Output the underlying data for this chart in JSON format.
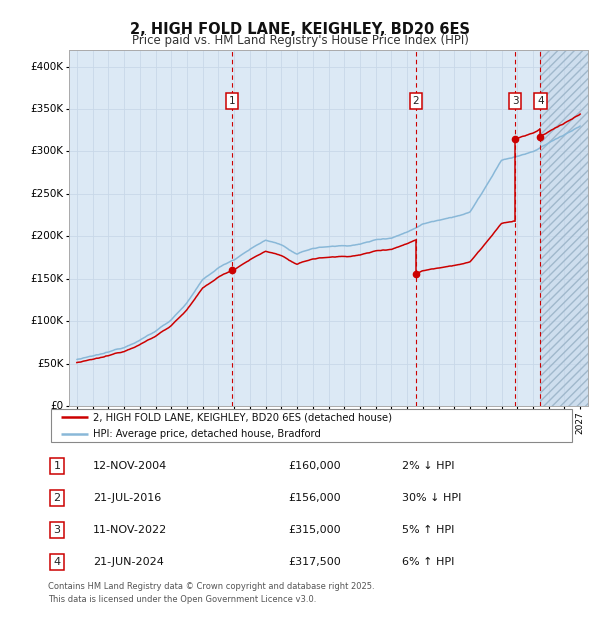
{
  "title": "2, HIGH FOLD LANE, KEIGHLEY, BD20 6ES",
  "subtitle": "Price paid vs. HM Land Registry's House Price Index (HPI)",
  "ylim": [
    0,
    420000
  ],
  "yticks": [
    0,
    50000,
    100000,
    150000,
    200000,
    250000,
    300000,
    350000,
    400000
  ],
  "ytick_labels": [
    "£0",
    "£50K",
    "£100K",
    "£150K",
    "£200K",
    "£250K",
    "£300K",
    "£350K",
    "£400K"
  ],
  "xlim_start": 1994.5,
  "xlim_end": 2027.5,
  "background_color": "#ffffff",
  "plot_bg_color": "#dce9f5",
  "grid_color": "#c8d8e8",
  "sale_color": "#cc0000",
  "hpi_color": "#89b8d8",
  "vline_color": "#cc0000",
  "transactions": [
    {
      "num": 1,
      "date_x": 2004.87,
      "price": 160000
    },
    {
      "num": 2,
      "date_x": 2016.55,
      "price": 156000
    },
    {
      "num": 3,
      "date_x": 2022.87,
      "price": 315000
    },
    {
      "num": 4,
      "date_x": 2024.47,
      "price": 317500
    }
  ],
  "legend_line1": "2, HIGH FOLD LANE, KEIGHLEY, BD20 6ES (detached house)",
  "legend_line2": "HPI: Average price, detached house, Bradford",
  "footnote1": "Contains HM Land Registry data © Crown copyright and database right 2025.",
  "footnote2": "This data is licensed under the Open Government Licence v3.0.",
  "table_rows": [
    {
      "num": 1,
      "date": "12-NOV-2004",
      "price": "£160,000",
      "hpi": "2% ↓ HPI"
    },
    {
      "num": 2,
      "date": "21-JUL-2016",
      "price": "£156,000",
      "hpi": "30% ↓ HPI"
    },
    {
      "num": 3,
      "date": "11-NOV-2022",
      "price": "£315,000",
      "hpi": "5% ↑ HPI"
    },
    {
      "num": 4,
      "date": "21-JUN-2024",
      "price": "£317,500",
      "hpi": "6% ↑ HPI"
    }
  ],
  "hpi_data": {
    "years": [
      1995,
      1996,
      1997,
      1998,
      1999,
      2000,
      2001,
      2002,
      2003,
      2004,
      2005,
      2006,
      2007,
      2008,
      2009,
      2010,
      2011,
      2012,
      2013,
      2014,
      2015,
      2016,
      2017,
      2018,
      2019,
      2020,
      2021,
      2022,
      2023,
      2024,
      2025,
      2026,
      2027
    ],
    "values": [
      55000,
      58000,
      62000,
      68000,
      78000,
      88000,
      102000,
      122000,
      148000,
      162000,
      172000,
      185000,
      195000,
      190000,
      178000,
      185000,
      187000,
      188000,
      190000,
      195000,
      198000,
      205000,
      215000,
      220000,
      225000,
      230000,
      260000,
      290000,
      295000,
      300000,
      310000,
      320000,
      330000
    ]
  }
}
